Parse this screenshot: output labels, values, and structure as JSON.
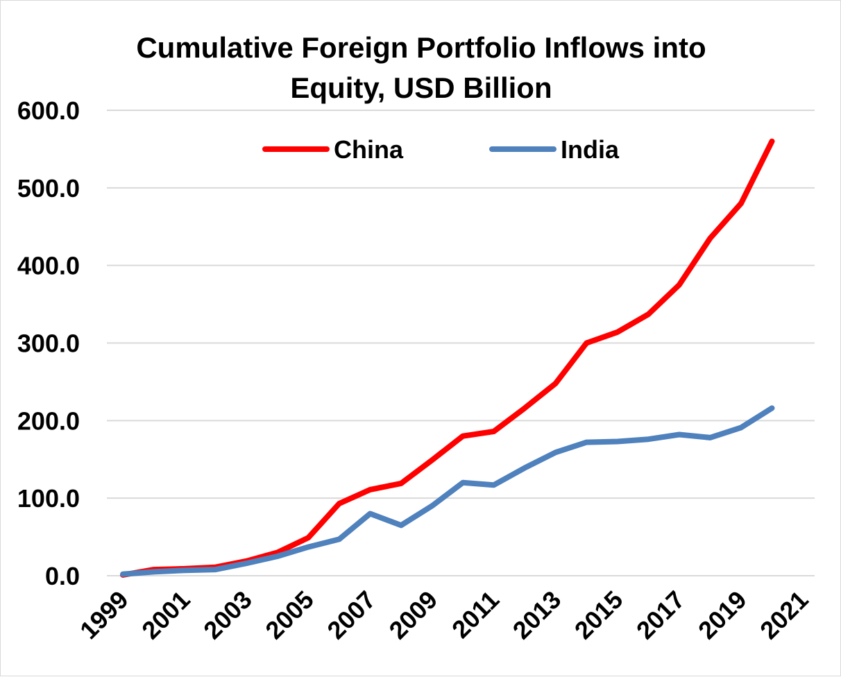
{
  "chart_data": {
    "type": "line",
    "title": "Cumulative Foreign Portfolio Inflows into Equity, USD Billion",
    "title_lines": [
      "Cumulative Foreign Portfolio Inflows into",
      "Equity, USD Billion"
    ],
    "xlabel": "",
    "ylabel": "",
    "ylim": [
      0,
      600
    ],
    "yticks": [
      "0.0",
      "100.0",
      "200.0",
      "300.0",
      "400.0",
      "500.0",
      "600.0"
    ],
    "xticks": [
      "1999",
      "2001",
      "2003",
      "2005",
      "2007",
      "2009",
      "2011",
      "2013",
      "2015",
      "2017",
      "2019",
      "2021"
    ],
    "x": [
      1999,
      2000,
      2001,
      2002,
      2003,
      2004,
      2005,
      2006,
      2007,
      2008,
      2009,
      2010,
      2011,
      2012,
      2013,
      2014,
      2015,
      2016,
      2017,
      2018,
      2019,
      2020
    ],
    "legend_position": "top-center",
    "grid": true,
    "series": [
      {
        "name": "China",
        "color": "#ff0000",
        "values": [
          1,
          8,
          9,
          11,
          19,
          30,
          49,
          93,
          111,
          119,
          149,
          180,
          186,
          216,
          248,
          300,
          314,
          337,
          375,
          435,
          480,
          560
        ]
      },
      {
        "name": "India",
        "color": "#4f81bd",
        "values": [
          2,
          5,
          7,
          8,
          16,
          25,
          37,
          47,
          80,
          65,
          90,
          120,
          117,
          139,
          159,
          172,
          173,
          176,
          182,
          178,
          191,
          216
        ]
      }
    ]
  }
}
